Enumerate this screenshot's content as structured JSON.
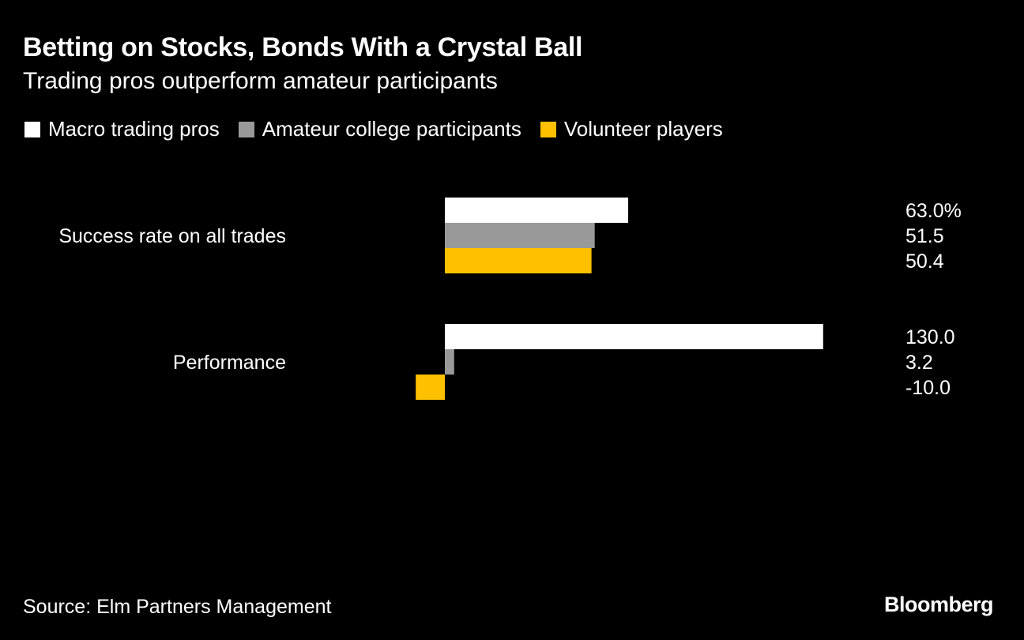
{
  "title": "Betting on Stocks, Bonds With a Crystal Ball",
  "subtitle": "Trading pros outperform amateur participants",
  "source": "Source: Elm Partners Management",
  "brand": "Bloomberg",
  "legend": [
    {
      "label": "Macro trading pros",
      "color": "#ffffff"
    },
    {
      "label": "Amateur college participants",
      "color": "#999999"
    },
    {
      "label": "Volunteer players",
      "color": "#ffc000"
    }
  ],
  "chart_data": {
    "type": "bar",
    "orientation": "horizontal",
    "categories": [
      "Success rate on all trades",
      "Performance"
    ],
    "series": [
      {
        "name": "Macro trading pros",
        "color": "#ffffff",
        "values": [
          63.0,
          130.0
        ],
        "labels": [
          "63.0%",
          "130.0"
        ]
      },
      {
        "name": "Amateur college participants",
        "color": "#999999",
        "values": [
          51.5,
          3.2
        ],
        "labels": [
          "51.5",
          "3.2"
        ]
      },
      {
        "name": "Volunteer players",
        "color": "#ffc000",
        "values": [
          50.4,
          -10.0
        ],
        "labels": [
          "50.4",
          "-10.0"
        ]
      }
    ],
    "xlim": [
      -10,
      130
    ],
    "grid": false,
    "legend_position": "top-left"
  }
}
